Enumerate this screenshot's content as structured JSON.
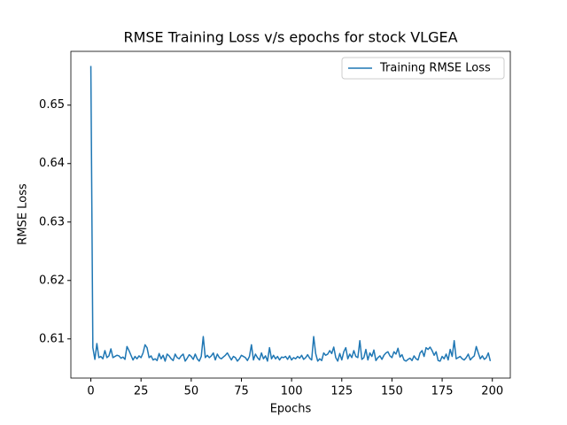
{
  "chart_data": {
    "type": "line",
    "title": "RMSE Training Loss v/s epochs for stock VLGEA",
    "xlabel": "Epochs",
    "ylabel": "RMSE Loss",
    "x": [
      0,
      1,
      2,
      3,
      4,
      5,
      6,
      7,
      8,
      9,
      10,
      11,
      12,
      13,
      14,
      15,
      16,
      17,
      18,
      19,
      20,
      21,
      22,
      23,
      24,
      25,
      26,
      27,
      28,
      29,
      30,
      31,
      32,
      33,
      34,
      35,
      36,
      37,
      38,
      39,
      40,
      41,
      42,
      43,
      44,
      45,
      46,
      47,
      48,
      49,
      50,
      51,
      52,
      53,
      54,
      55,
      56,
      57,
      58,
      59,
      60,
      61,
      62,
      63,
      64,
      65,
      66,
      67,
      68,
      69,
      70,
      71,
      72,
      73,
      74,
      75,
      76,
      77,
      78,
      79,
      80,
      81,
      82,
      83,
      84,
      85,
      86,
      87,
      88,
      89,
      90,
      91,
      92,
      93,
      94,
      95,
      96,
      97,
      98,
      99,
      100,
      101,
      102,
      103,
      104,
      105,
      106,
      107,
      108,
      109,
      110,
      111,
      112,
      113,
      114,
      115,
      116,
      117,
      118,
      119,
      120,
      121,
      122,
      123,
      124,
      125,
      126,
      127,
      128,
      129,
      130,
      131,
      132,
      133,
      134,
      135,
      136,
      137,
      138,
      139,
      140,
      141,
      142,
      143,
      144,
      145,
      146,
      147,
      148,
      149,
      150,
      151,
      152,
      153,
      154,
      155,
      156,
      157,
      158,
      159,
      160,
      161,
      162,
      163,
      164,
      165,
      166,
      167,
      168,
      169,
      170,
      171,
      172,
      173,
      174,
      175,
      176,
      177,
      178,
      179,
      180,
      181,
      182,
      183,
      184,
      185,
      186,
      187,
      188,
      189,
      190,
      191,
      192,
      193,
      194,
      195,
      196,
      197,
      198,
      199
    ],
    "series": [
      {
        "name": "Training RMSE Loss",
        "color": "#1f77b4",
        "values": [
          0.6567,
          0.6085,
          0.6065,
          0.6092,
          0.6068,
          0.607,
          0.6066,
          0.608,
          0.6068,
          0.6071,
          0.6083,
          0.6068,
          0.607,
          0.6072,
          0.6071,
          0.6067,
          0.6069,
          0.6065,
          0.6087,
          0.608,
          0.6072,
          0.6064,
          0.607,
          0.6066,
          0.6071,
          0.6068,
          0.6076,
          0.609,
          0.6085,
          0.6068,
          0.6071,
          0.6064,
          0.6066,
          0.6063,
          0.6075,
          0.6066,
          0.6072,
          0.6062,
          0.6074,
          0.6071,
          0.6066,
          0.6063,
          0.6074,
          0.6068,
          0.6066,
          0.6071,
          0.6074,
          0.6062,
          0.6067,
          0.6073,
          0.607,
          0.6065,
          0.6074,
          0.6066,
          0.6062,
          0.607,
          0.6104,
          0.6068,
          0.6072,
          0.6068,
          0.6071,
          0.6076,
          0.6064,
          0.6074,
          0.6068,
          0.6066,
          0.6069,
          0.6072,
          0.6076,
          0.607,
          0.6064,
          0.607,
          0.6068,
          0.6062,
          0.6066,
          0.6072,
          0.607,
          0.6068,
          0.6063,
          0.607,
          0.609,
          0.6064,
          0.6074,
          0.6068,
          0.6064,
          0.6076,
          0.6066,
          0.6071,
          0.6062,
          0.6085,
          0.6066,
          0.6072,
          0.6066,
          0.607,
          0.6064,
          0.6069,
          0.6068,
          0.607,
          0.6065,
          0.6071,
          0.6064,
          0.6068,
          0.6066,
          0.607,
          0.6067,
          0.6072,
          0.6065,
          0.6068,
          0.6073,
          0.6067,
          0.6064,
          0.6104,
          0.6075,
          0.6062,
          0.6066,
          0.6063,
          0.6076,
          0.6072,
          0.6074,
          0.608,
          0.6075,
          0.6086,
          0.6068,
          0.6062,
          0.6075,
          0.6064,
          0.6078,
          0.6085,
          0.6066,
          0.6074,
          0.6068,
          0.608,
          0.607,
          0.6068,
          0.6097,
          0.6065,
          0.6068,
          0.6082,
          0.6064,
          0.6076,
          0.607,
          0.6081,
          0.6063,
          0.6068,
          0.6071,
          0.6065,
          0.6072,
          0.6076,
          0.6078,
          0.6071,
          0.6068,
          0.6078,
          0.6074,
          0.6084,
          0.6069,
          0.6073,
          0.6064,
          0.6062,
          0.6065,
          0.6067,
          0.6063,
          0.6071,
          0.6066,
          0.6064,
          0.6076,
          0.608,
          0.607,
          0.6085,
          0.6082,
          0.6086,
          0.608,
          0.6072,
          0.6078,
          0.6063,
          0.6062,
          0.607,
          0.6066,
          0.6074,
          0.6064,
          0.6082,
          0.607,
          0.6097,
          0.6066,
          0.6068,
          0.607,
          0.6066,
          0.6064,
          0.6068,
          0.6074,
          0.6064,
          0.6068,
          0.6071,
          0.6087,
          0.6076,
          0.6066,
          0.6071,
          0.6065,
          0.6068,
          0.6076,
          0.6062
        ]
      }
    ],
    "xlim": [
      -9.95,
      208.95
    ],
    "ylim": [
      0.6033,
      0.6592
    ],
    "xticks": [
      0,
      25,
      50,
      75,
      100,
      125,
      150,
      175,
      200
    ],
    "yticks": [
      0.61,
      0.62,
      0.63,
      0.64,
      0.65
    ],
    "legend": "upper right",
    "grid": false
  }
}
